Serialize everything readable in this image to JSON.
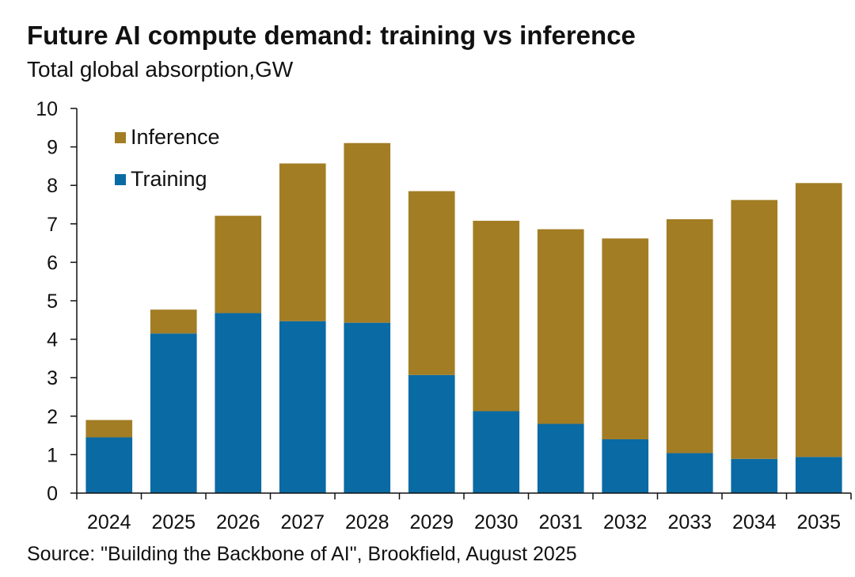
{
  "title": "Future AI compute demand: training vs inference",
  "subtitle": "Total global absorption,GW",
  "source": "Source: \"Building the Backbone of AI\", Brookfield, August 2025",
  "colors": {
    "training": "#0a6aa3",
    "inference": "#a27d24",
    "axis": "#111111"
  },
  "chart_data": {
    "type": "bar",
    "stacked": true,
    "categories": [
      "2024",
      "2025",
      "2026",
      "2027",
      "2028",
      "2029",
      "2030",
      "2031",
      "2032",
      "2033",
      "2034",
      "2035"
    ],
    "series": [
      {
        "name": "Training",
        "values": [
          1.45,
          4.15,
          4.68,
          4.47,
          4.43,
          3.07,
          2.13,
          1.8,
          1.4,
          1.04,
          0.89,
          0.94
        ]
      },
      {
        "name": "Inference",
        "values": [
          0.45,
          0.62,
          2.53,
          4.1,
          4.67,
          4.78,
          4.95,
          5.06,
          5.22,
          6.08,
          6.73,
          7.12
        ]
      }
    ],
    "title": "Future AI compute demand: training vs inference",
    "xlabel": "",
    "ylabel": "Total global absorption,GW",
    "ylim": [
      0,
      10
    ],
    "yticks": [
      0,
      1,
      2,
      3,
      4,
      5,
      6,
      7,
      8,
      9,
      10
    ],
    "legend": {
      "position": "top-left",
      "entries": [
        "Inference",
        "Training"
      ]
    },
    "grid": false
  }
}
